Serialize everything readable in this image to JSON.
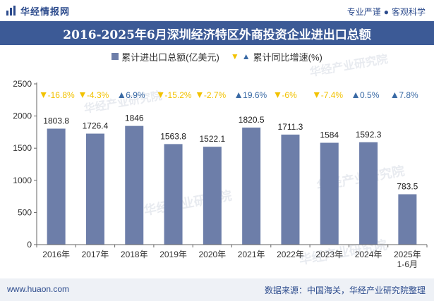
{
  "brand": {
    "name": "华经情报网",
    "slogan_left": "专业严谨",
    "slogan_separator": "●",
    "slogan_right": "客观科学",
    "watermark": "华经产业研究院",
    "watermark_url": "www.huaon.com"
  },
  "colors": {
    "title_bg": "#3c5a96",
    "bar": "#6d7ea9",
    "down": "#f2c200",
    "up": "#3a6aa5",
    "footer_bg": "#eef1f6"
  },
  "legend": {
    "bar_label": "累计进出口总额(亿美元)",
    "marker_label": "累计同比增速(%)"
  },
  "footer": {
    "website": "www.huaon.com",
    "source": "数据来源：中国海关，华经产业研究院整理"
  },
  "chart_data": {
    "type": "bar",
    "title": "2016-2025年6月深圳经济特区外商投资企业进出口总额",
    "categories": [
      "2016年",
      "2017年",
      "2018年",
      "2019年",
      "2020年",
      "2021年",
      "2022年",
      "2023年",
      "2024年",
      "2025年1-6月"
    ],
    "category_lines": [
      [
        "2016年"
      ],
      [
        "2017年"
      ],
      [
        "2018年"
      ],
      [
        "2019年"
      ],
      [
        "2020年"
      ],
      [
        "2021年"
      ],
      [
        "2022年"
      ],
      [
        "2023年"
      ],
      [
        "2024年"
      ],
      [
        "2025年",
        "1-6月"
      ]
    ],
    "values": [
      1803.8,
      1726.4,
      1846,
      1563.8,
      1522.1,
      1820.5,
      1711.3,
      1584,
      1592.3,
      783.5
    ],
    "value_labels": [
      "1803.8",
      "1726.4",
      "1846",
      "1563.8",
      "1522.1",
      "1820.5",
      "1711.3",
      "1584",
      "1592.3",
      "783.5"
    ],
    "growth": [
      -16.8,
      -4.3,
      6.9,
      -15.2,
      -2.7,
      19.6,
      -6,
      -7.4,
      0.5,
      7.8
    ],
    "growth_labels": [
      "-16.8%",
      "-4.3%",
      "6.9%",
      "-15.2%",
      "-2.7%",
      "19.6%",
      "-6%",
      "-7.4%",
      "0.5%",
      "7.8%"
    ],
    "ylim": [
      0,
      2500
    ],
    "yticks": [
      0,
      500,
      1000,
      1500,
      2000,
      2500
    ],
    "legend_position": "top-center",
    "grid": false
  }
}
